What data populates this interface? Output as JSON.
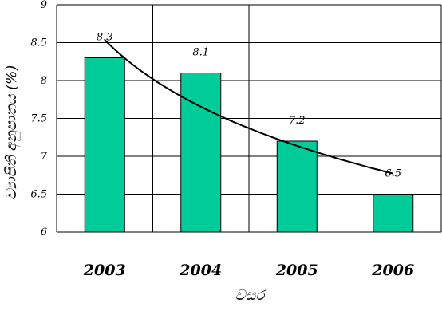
{
  "chart_data": {
    "type": "bar",
    "categories": [
      "2003",
      "2004",
      "2005",
      "2006"
    ],
    "values": [
      8.3,
      8.1,
      7.2,
      6.5
    ],
    "data_labels": [
      "8.3",
      "8.1",
      "7.2",
      "6.5"
    ],
    "ylim": [
      6,
      9
    ],
    "yticks": [
      6,
      6.5,
      7,
      7.5,
      8,
      8.5,
      9
    ],
    "ytick_labels": [
      "6",
      "6.5",
      "7",
      "7.5",
      "8",
      "8.5",
      "9"
    ],
    "xlabel": "වසර",
    "ylabel": "ව්‍යාපිති අනුපාතය (%)",
    "grid": "both",
    "trendline": "logarithmic",
    "bar_color": "#00CC99"
  }
}
